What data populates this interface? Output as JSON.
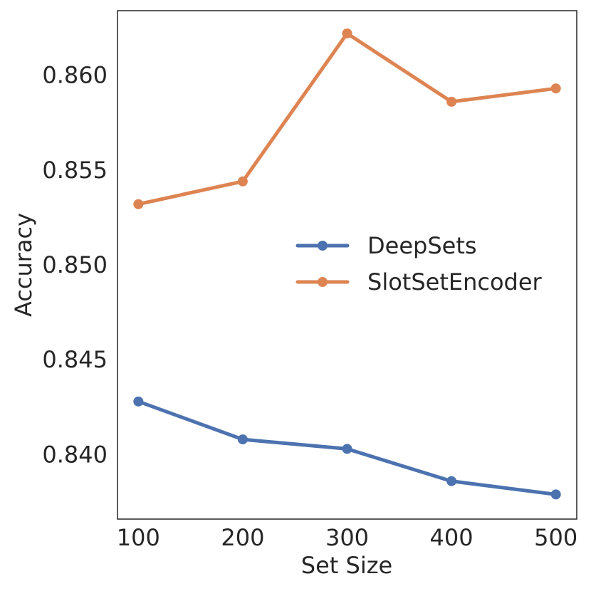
{
  "chart_data": {
    "type": "line",
    "title": "",
    "xlabel": "Set Size",
    "ylabel": "Accuracy",
    "x": [
      100,
      200,
      300,
      400,
      500
    ],
    "xticks": [
      "100",
      "200",
      "300",
      "400",
      "500"
    ],
    "yticks": [
      "0.840",
      "0.845",
      "0.850",
      "0.855",
      "0.860"
    ],
    "ytick_values": [
      0.84,
      0.845,
      0.85,
      0.855,
      0.86
    ],
    "xlim": [
      80,
      520
    ],
    "ylim": [
      0.8366,
      0.8634
    ],
    "grid": false,
    "legend_position": "center-right",
    "series": [
      {
        "name": "DeepSets",
        "color": "#4c72b0",
        "values": [
          0.8428,
          0.8408,
          0.8403,
          0.8386,
          0.8379
        ]
      },
      {
        "name": "SlotSetEncoder",
        "color": "#dd8452",
        "values": [
          0.8532,
          0.8544,
          0.8622,
          0.8586,
          0.8593
        ]
      }
    ]
  }
}
